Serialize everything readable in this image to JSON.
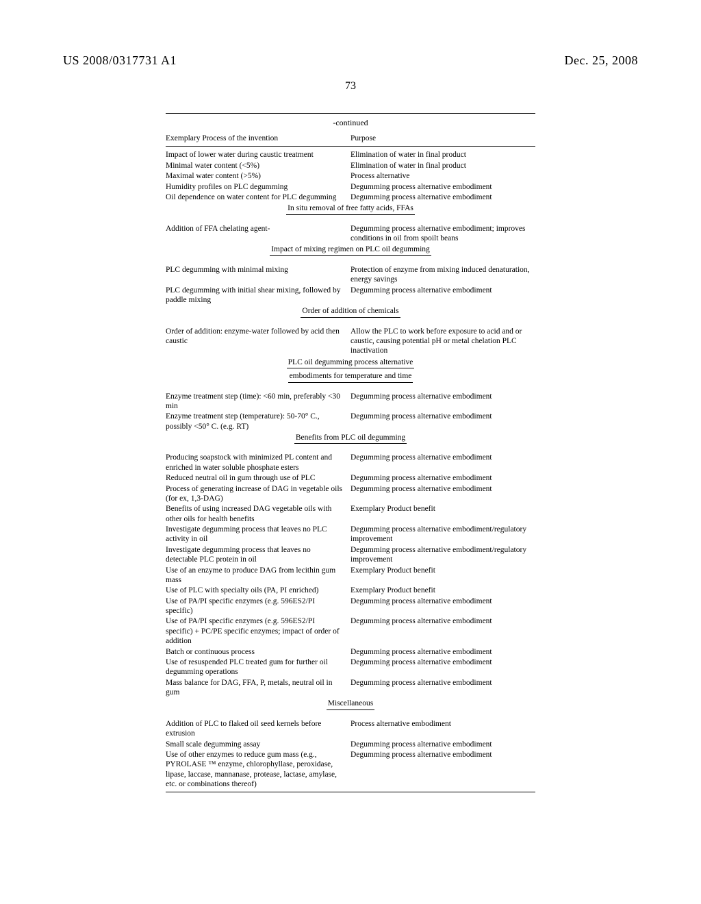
{
  "header": {
    "pub_number": "US 2008/0317731 A1",
    "pub_date": "Dec. 25, 2008"
  },
  "page_number": "73",
  "continued_label": "-continued",
  "columns": {
    "left": "Exemplary Process of the invention",
    "right": "Purpose"
  },
  "rows": [
    {
      "l": "Impact of lower water during caustic treatment",
      "r": "Elimination of water in final product"
    },
    {
      "l": "Minimal water content (<5%)",
      "r": "Elimination of water in final product"
    },
    {
      "l": "Maximal water content (>5%)",
      "r": "Process alternative"
    },
    {
      "l": "Humidity profiles on PLC degumming",
      "r": "Degumming process alternative embodiment"
    },
    {
      "l": "Oil dependence on water content for PLC degumming",
      "r": "Degumming process alternative embodiment"
    }
  ],
  "sec1": "In situ removal of free fatty acids, FFAs",
  "rows1": [
    {
      "l": "Addition of FFA chelating agent-",
      "r": "Degumming process alternative embodiment; improves conditions in oil from spoilt beans"
    }
  ],
  "sec2": "Impact of mixing regimen on PLC oil degumming",
  "rows2": [
    {
      "l": "PLC degumming with minimal mixing",
      "r": "Protection of enzyme from mixing induced denaturation, energy savings"
    },
    {
      "l": "PLC degumming with initial shear mixing, followed by paddle mixing",
      "r": "Degumming process alternative embodiment"
    }
  ],
  "sec3": "Order of addition of chemicals",
  "rows3": [
    {
      "l": "Order of addition: enzyme-water followed by acid then caustic",
      "r": "Allow the PLC to work before exposure to acid and or caustic, causing potential pH or metal chelation PLC inactivation"
    }
  ],
  "sec4a": "PLC oil degumming process alternative",
  "sec4b": "embodiments for temperature and time",
  "rows4": [
    {
      "l": "Enzyme treatment step (time): <60 min, preferably <30 min",
      "r": "Degumming process alternative embodiment"
    },
    {
      "l": "Enzyme treatment step (temperature): 50-70° C., possibly <50° C. (e.g. RT)",
      "r": "Degumming process alternative embodiment"
    }
  ],
  "sec5": "Benefits from PLC oil degumming",
  "rows5": [
    {
      "l": "Producing soapstock with minimized PL content and enriched in water soluble phosphate esters",
      "r": "Degumming process alternative embodiment"
    },
    {
      "l": "Reduced neutral oil in gum through use of PLC",
      "r": "Degumming process alternative embodiment"
    },
    {
      "l": "Process of generating increase of DAG in vegetable oils (for ex, 1,3-DAG)",
      "r": "Degumming process alternative embodiment"
    },
    {
      "l": "Benefits of using increased DAG vegetable oils with other oils for health benefits",
      "r": "Exemplary Product benefit"
    },
    {
      "l": "Investigate degumming process that leaves no PLC activity in oil",
      "r": "Degumming process alternative embodiment/regulatory improvement"
    },
    {
      "l": "Investigate degumming process that leaves no detectable PLC protein in oil",
      "r": "Degumming process alternative embodiment/regulatory improvement"
    },
    {
      "l": "Use of an enzyme to produce DAG from lecithin gum mass",
      "r": "Exemplary Product benefit"
    },
    {
      "l": "Use of PLC with specialty oils (PA, PI enriched)",
      "r": "Exemplary Product benefit"
    },
    {
      "l": "Use of PA/PI specific enzymes (e.g. 596ES2/PI specific)",
      "r": "Degumming process alternative embodiment"
    },
    {
      "l": "Use of PA/PI specific enzymes (e.g. 596ES2/PI specific) + PC/PE specific enzymes; impact of order of addition",
      "r": "Degumming process alternative embodiment"
    },
    {
      "l": "Batch or continuous process",
      "r": "Degumming process alternative embodiment"
    },
    {
      "l": "Use of resuspended PLC treated gum for further oil degumming operations",
      "r": "Degumming process alternative embodiment"
    },
    {
      "l": "Mass balance for DAG, FFA, P, metals, neutral oil in gum",
      "r": "Degumming process alternative embodiment"
    }
  ],
  "sec6": "Miscellaneous",
  "rows6": [
    {
      "l": "Addition of PLC to flaked oil seed kernels before extrusion",
      "r": "Process alternative embodiment"
    },
    {
      "l": "Small scale degumming assay",
      "r": "Degumming process alternative embodiment"
    },
    {
      "l": "Use of other enzymes to reduce gum mass (e.g., PYROLASE ™ enzyme, chlorophyllase, peroxidase, lipase, laccase, mannanase, protease, lactase, amylase, etc. or combinations thereof)",
      "r": "Degumming process alternative embodiment"
    }
  ]
}
